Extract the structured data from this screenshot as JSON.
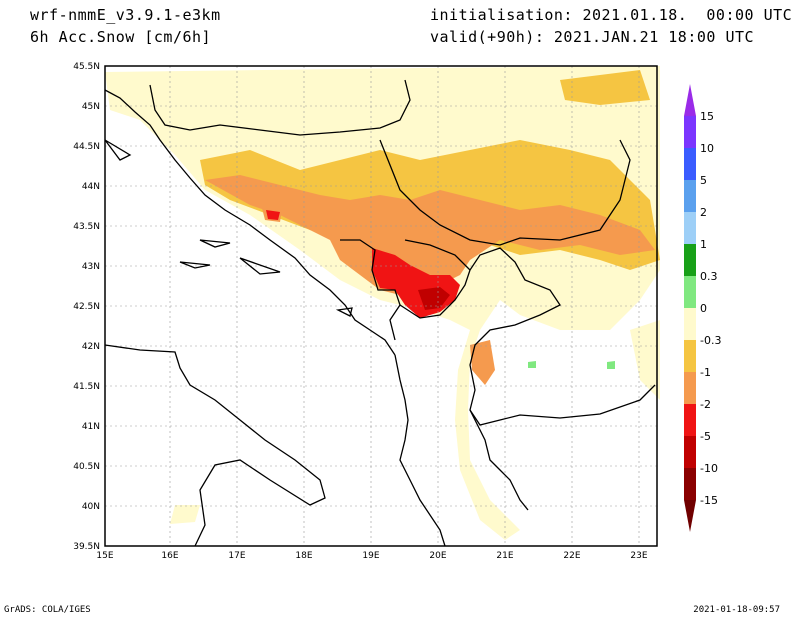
{
  "header": {
    "model": "wrf-nmmE_v3.9.1-e3km",
    "variable": "6h Acc.Snow [cm/6h]",
    "init": "initialisation: 2021.01.18.  00:00 UTC",
    "valid": "valid(+90h): 2021.JAN.21 18:00 UTC"
  },
  "map": {
    "lat_labels": [
      "45.5N",
      "45N",
      "44.5N",
      "44N",
      "43.5N",
      "43N",
      "42.5N",
      "42N",
      "41.5N",
      "41N",
      "40.5N",
      "40N",
      "39.5N"
    ],
    "lon_labels": [
      "15E",
      "16E",
      "17E",
      "18E",
      "19E",
      "20E",
      "21E",
      "22E",
      "23E"
    ],
    "lat_range": [
      39.5,
      45.5
    ],
    "lon_range": [
      15,
      23.3
    ],
    "grid": true
  },
  "colorbar": {
    "labels": [
      "15",
      "10",
      "5",
      "2",
      "1",
      "0.3",
      "0",
      "-0.3",
      "-1",
      "-2",
      "-5",
      "-10",
      "-15"
    ],
    "colors": [
      "#7b35ff",
      "#3a5cff",
      "#5aa0ee",
      "#9dcff7",
      "#18a018",
      "#80e880",
      "#ffffff",
      "#fffacd",
      "#f5c542",
      "#f59a4e",
      "#f01414",
      "#c00000",
      "#8b0000"
    ],
    "top_triangle": "#9a2be8",
    "bottom_triangle": "#700000"
  },
  "footer": {
    "left": "GrADS: COLA/IGES",
    "right": "2021-01-18-09:57"
  }
}
